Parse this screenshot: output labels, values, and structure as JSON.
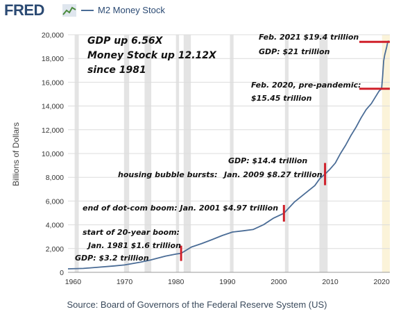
{
  "header": {
    "logo_text": "FRED",
    "legend_label": "M2 Money Stock",
    "series_color": "#4a6c96",
    "logo_color": "#2b4a73"
  },
  "footer": {
    "source": "Source: Board of Governors of the Federal Reserve System (US)"
  },
  "chart_data": {
    "type": "line",
    "title": "",
    "xlabel": "",
    "ylabel": "Billions of Dollars",
    "xlim": [
      1959,
      2021.6
    ],
    "ylim": [
      0,
      20000
    ],
    "x_ticks": [
      "1960",
      "1970",
      "1980",
      "1990",
      "2000",
      "2010",
      "2020"
    ],
    "y_ticks": [
      "0",
      "2,000",
      "4,000",
      "6,000",
      "8,000",
      "10,000",
      "12,000",
      "14,000",
      "16,000",
      "18,000",
      "20,000"
    ],
    "grid": true,
    "recessions": [
      [
        1960.3,
        1961.1
      ],
      [
        1969.9,
        1970.9
      ],
      [
        1973.9,
        1975.2
      ],
      [
        1980.0,
        1980.6
      ],
      [
        1981.5,
        1982.9
      ],
      [
        1990.5,
        1991.2
      ],
      [
        2001.2,
        2001.9
      ],
      [
        2007.9,
        2009.5
      ],
      [
        2020.1,
        2020.4
      ]
    ],
    "series": [
      {
        "name": "M2 Money Stock",
        "x": [
          1959,
          1962,
          1965,
          1968,
          1970,
          1973,
          1975,
          1978,
          1980,
          1981,
          1983,
          1985,
          1987,
          1989,
          1991,
          1993,
          1995,
          1997,
          1999,
          2001,
          2003,
          2005,
          2007,
          2008,
          2009,
          2010,
          2011,
          2012,
          2013,
          2014,
          2015,
          2016,
          2017,
          2018,
          2019,
          2019.5,
          2020,
          2020.2,
          2020.4,
          2020.6,
          2021,
          2021.2,
          2021.4
        ],
        "y": [
          290,
          330,
          430,
          540,
          620,
          850,
          1030,
          1370,
          1540,
          1600,
          2130,
          2420,
          2750,
          3100,
          3390,
          3490,
          3600,
          4000,
          4570,
          4970,
          5900,
          6600,
          7300,
          7900,
          8270,
          8700,
          9200,
          10000,
          10700,
          11500,
          12200,
          13000,
          13700,
          14200,
          14900,
          15250,
          15450,
          16500,
          17800,
          18300,
          19000,
          19400,
          19500
        ]
      }
    ],
    "annotations": {
      "summary_1": "GDP up 6.56X",
      "summary_2": "Money Stock up 12.12X",
      "summary_3": "since 1981",
      "feb2021_1": "Feb. 2021 $19.4 trillion",
      "feb2021_2": "GDP: $21 trillion",
      "feb2020_1": "Feb. 2020, pre-pandemic:",
      "feb2020_2": "$15.45 trillion",
      "housing_1": "housing bubble bursts:",
      "housing_2": "GDP: $14.4 trillion",
      "housing_3": "Jan. 2009 $8.27 trillion",
      "dotcom_1": "end of dot-com boom:  Jan. 2001  $4.97 trillion",
      "boom_1": "start of 20-year boom:",
      "boom_2": "Jan. 1981 $1.6 trillion",
      "boom_3": "GDP: $3.2 trillion"
    },
    "marker_color": "#d0202a"
  }
}
